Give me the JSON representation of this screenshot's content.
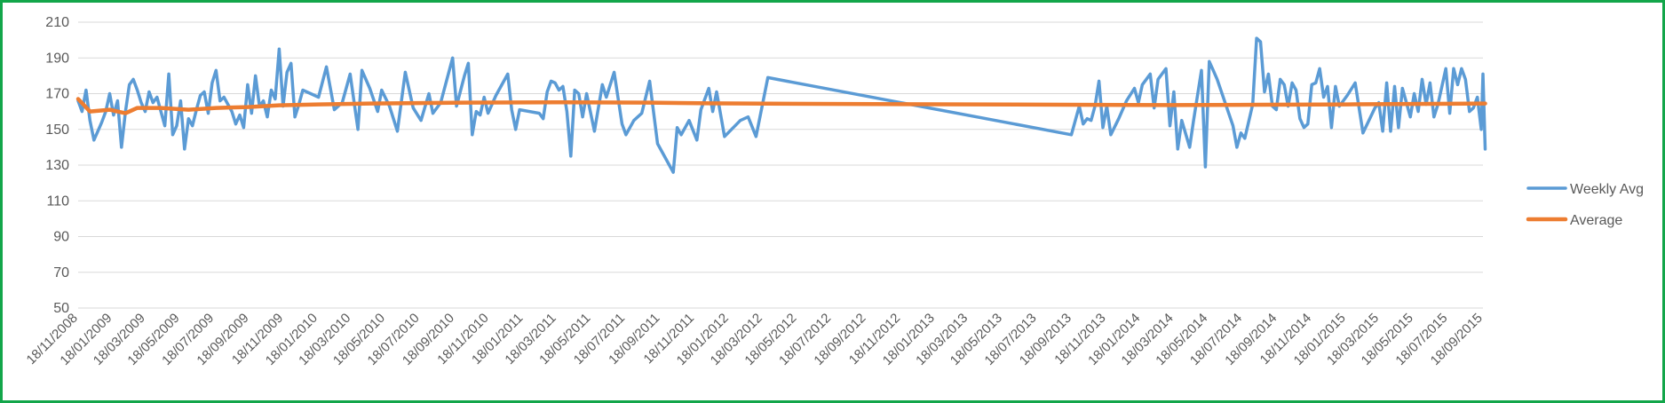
{
  "chart_data": {
    "type": "line",
    "title": "",
    "xlabel": "",
    "ylabel": "",
    "ylim": [
      50,
      210
    ],
    "y_ticks": [
      50,
      70,
      90,
      110,
      130,
      150,
      170,
      190,
      210
    ],
    "x_range": [
      "2008-11-18",
      "2015-09-18"
    ],
    "x_tick_labels": [
      "18/11/2008",
      "18/01/2009",
      "18/03/2009",
      "18/05/2009",
      "18/07/2009",
      "18/09/2009",
      "18/11/2009",
      "18/01/2010",
      "18/03/2010",
      "18/05/2010",
      "18/07/2010",
      "18/09/2010",
      "18/11/2010",
      "18/01/2011",
      "18/03/2011",
      "18/05/2011",
      "18/07/2011",
      "18/09/2011",
      "18/11/2011",
      "18/01/2012",
      "18/03/2012",
      "18/05/2012",
      "18/07/2012",
      "18/09/2012",
      "18/11/2012",
      "18/01/2013",
      "18/03/2013",
      "18/05/2013",
      "18/07/2013",
      "18/09/2013",
      "18/11/2013",
      "18/01/2014",
      "18/03/2014",
      "18/05/2014",
      "18/07/2014",
      "18/09/2014",
      "18/11/2014",
      "18/01/2015",
      "18/03/2015",
      "18/05/2015",
      "18/07/2015",
      "18/09/2015"
    ],
    "grid": true,
    "legend_position": "right",
    "colors": {
      "weekly": "#5b9bd5",
      "average": "#ed7d31",
      "grid": "#d9d9d9",
      "frame": "#12a64a"
    },
    "series": [
      {
        "name": "Weekly Avg",
        "points": [
          [
            "2008-11-18",
            166
          ],
          [
            "2008-11-25",
            160
          ],
          [
            "2008-12-02",
            172
          ],
          [
            "2008-12-09",
            155
          ],
          [
            "2008-12-16",
            144
          ],
          [
            "2008-12-23",
            149
          ],
          [
            "2008-12-30",
            154
          ],
          [
            "2009-01-06",
            160
          ],
          [
            "2009-01-13",
            170
          ],
          [
            "2009-01-20",
            158
          ],
          [
            "2009-01-27",
            166
          ],
          [
            "2009-02-03",
            140
          ],
          [
            "2009-02-10",
            160
          ],
          [
            "2009-02-17",
            175
          ],
          [
            "2009-02-24",
            178
          ],
          [
            "2009-03-03",
            172
          ],
          [
            "2009-03-10",
            165
          ],
          [
            "2009-03-17",
            160
          ],
          [
            "2009-03-24",
            171
          ],
          [
            "2009-03-31",
            165
          ],
          [
            "2009-04-07",
            168
          ],
          [
            "2009-04-14",
            160
          ],
          [
            "2009-04-21",
            152
          ],
          [
            "2009-04-28",
            181
          ],
          [
            "2009-05-05",
            147
          ],
          [
            "2009-05-12",
            152
          ],
          [
            "2009-05-19",
            166
          ],
          [
            "2009-05-26",
            139
          ],
          [
            "2009-06-02",
            156
          ],
          [
            "2009-06-09",
            152
          ],
          [
            "2009-06-16",
            161
          ],
          [
            "2009-06-23",
            169
          ],
          [
            "2009-06-30",
            171
          ],
          [
            "2009-07-07",
            159
          ],
          [
            "2009-07-14",
            176
          ],
          [
            "2009-07-21",
            183
          ],
          [
            "2009-07-28",
            166
          ],
          [
            "2009-08-04",
            168
          ],
          [
            "2009-08-11",
            164
          ],
          [
            "2009-08-18",
            160
          ],
          [
            "2009-08-25",
            153
          ],
          [
            "2009-09-01",
            158
          ],
          [
            "2009-09-08",
            151
          ],
          [
            "2009-09-15",
            175
          ],
          [
            "2009-09-22",
            159
          ],
          [
            "2009-09-29",
            180
          ],
          [
            "2009-10-06",
            163
          ],
          [
            "2009-10-13",
            166
          ],
          [
            "2009-10-20",
            157
          ],
          [
            "2009-10-27",
            172
          ],
          [
            "2009-11-03",
            167
          ],
          [
            "2009-11-10",
            195
          ],
          [
            "2009-11-17",
            163
          ],
          [
            "2009-11-24",
            182
          ],
          [
            "2009-12-01",
            187
          ],
          [
            "2009-12-08",
            157
          ],
          [
            "2009-12-15",
            164
          ],
          [
            "2009-12-22",
            172
          ],
          [
            "2010-01-05",
            170
          ],
          [
            "2010-01-19",
            168
          ],
          [
            "2010-02-02",
            185
          ],
          [
            "2010-02-16",
            161
          ],
          [
            "2010-03-02",
            165
          ],
          [
            "2010-03-16",
            181
          ],
          [
            "2010-03-30",
            150
          ],
          [
            "2010-04-06",
            183
          ],
          [
            "2010-04-20",
            173
          ],
          [
            "2010-05-04",
            160
          ],
          [
            "2010-05-11",
            172
          ],
          [
            "2010-05-25",
            163
          ],
          [
            "2010-06-08",
            149
          ],
          [
            "2010-06-22",
            182
          ],
          [
            "2010-07-06",
            162
          ],
          [
            "2010-07-20",
            155
          ],
          [
            "2010-08-03",
            170
          ],
          [
            "2010-08-10",
            159
          ],
          [
            "2010-08-24",
            165
          ],
          [
            "2010-09-14",
            190
          ],
          [
            "2010-09-21",
            163
          ],
          [
            "2010-10-05",
            180
          ],
          [
            "2010-10-12",
            187
          ],
          [
            "2010-10-19",
            147
          ],
          [
            "2010-10-26",
            160
          ],
          [
            "2010-11-02",
            158
          ],
          [
            "2010-11-09",
            168
          ],
          [
            "2010-11-16",
            159
          ],
          [
            "2010-11-30",
            169
          ],
          [
            "2010-12-21",
            181
          ],
          [
            "2010-12-28",
            161
          ],
          [
            "2011-01-04",
            150
          ],
          [
            "2011-01-11",
            161
          ],
          [
            "2011-02-15",
            159
          ],
          [
            "2011-02-22",
            156
          ],
          [
            "2011-03-01",
            171
          ],
          [
            "2011-03-08",
            177
          ],
          [
            "2011-03-15",
            176
          ],
          [
            "2011-03-22",
            172
          ],
          [
            "2011-03-29",
            174
          ],
          [
            "2011-04-05",
            160
          ],
          [
            "2011-04-12",
            135
          ],
          [
            "2011-04-19",
            172
          ],
          [
            "2011-04-26",
            170
          ],
          [
            "2011-05-03",
            157
          ],
          [
            "2011-05-10",
            170
          ],
          [
            "2011-05-24",
            149
          ],
          [
            "2011-06-07",
            175
          ],
          [
            "2011-06-14",
            168
          ],
          [
            "2011-06-28",
            182
          ],
          [
            "2011-07-12",
            153
          ],
          [
            "2011-07-19",
            147
          ],
          [
            "2011-08-02",
            155
          ],
          [
            "2011-08-16",
            159
          ],
          [
            "2011-08-30",
            177
          ],
          [
            "2011-09-13",
            142
          ],
          [
            "2011-10-11",
            126
          ],
          [
            "2011-10-18",
            151
          ],
          [
            "2011-10-25",
            147
          ],
          [
            "2011-11-08",
            155
          ],
          [
            "2011-11-22",
            144
          ],
          [
            "2011-11-29",
            161
          ],
          [
            "2011-12-13",
            173
          ],
          [
            "2011-12-20",
            160
          ],
          [
            "2011-12-27",
            171
          ],
          [
            "2012-01-10",
            146
          ],
          [
            "2012-02-07",
            155
          ],
          [
            "2012-02-21",
            157
          ],
          [
            "2012-03-06",
            146
          ],
          [
            "2012-03-27",
            179
          ],
          [
            "2013-09-17",
            147
          ],
          [
            "2013-10-01",
            163
          ],
          [
            "2013-10-08",
            153
          ],
          [
            "2013-10-15",
            156
          ],
          [
            "2013-10-22",
            155
          ],
          [
            "2013-10-29",
            163
          ],
          [
            "2013-11-05",
            177
          ],
          [
            "2013-11-12",
            151
          ],
          [
            "2013-11-19",
            163
          ],
          [
            "2013-11-26",
            147
          ],
          [
            "2013-12-10",
            156
          ],
          [
            "2013-12-24",
            166
          ],
          [
            "2014-01-07",
            173
          ],
          [
            "2014-01-14",
            165
          ],
          [
            "2014-01-21",
            175
          ],
          [
            "2014-02-04",
            181
          ],
          [
            "2014-02-11",
            162
          ],
          [
            "2014-02-18",
            178
          ],
          [
            "2014-03-04",
            184
          ],
          [
            "2014-03-11",
            152
          ],
          [
            "2014-03-18",
            171
          ],
          [
            "2014-03-25",
            139
          ],
          [
            "2014-04-01",
            155
          ],
          [
            "2014-04-15",
            140
          ],
          [
            "2014-04-22",
            155
          ],
          [
            "2014-05-06",
            183
          ],
          [
            "2014-05-13",
            129
          ],
          [
            "2014-05-20",
            188
          ],
          [
            "2014-05-27",
            183
          ],
          [
            "2014-06-03",
            178
          ],
          [
            "2014-06-17",
            165
          ],
          [
            "2014-07-01",
            152
          ],
          [
            "2014-07-08",
            140
          ],
          [
            "2014-07-15",
            148
          ],
          [
            "2014-07-22",
            145
          ],
          [
            "2014-08-05",
            164
          ],
          [
            "2014-08-12",
            201
          ],
          [
            "2014-08-19",
            199
          ],
          [
            "2014-08-26",
            171
          ],
          [
            "2014-09-02",
            181
          ],
          [
            "2014-09-09",
            163
          ],
          [
            "2014-09-16",
            161
          ],
          [
            "2014-09-23",
            178
          ],
          [
            "2014-09-30",
            175
          ],
          [
            "2014-10-07",
            163
          ],
          [
            "2014-10-14",
            176
          ],
          [
            "2014-10-21",
            172
          ],
          [
            "2014-10-28",
            156
          ],
          [
            "2014-11-04",
            151
          ],
          [
            "2014-11-11",
            153
          ],
          [
            "2014-11-18",
            175
          ],
          [
            "2014-11-25",
            176
          ],
          [
            "2014-12-02",
            184
          ],
          [
            "2014-12-09",
            168
          ],
          [
            "2014-12-16",
            174
          ],
          [
            "2014-12-23",
            151
          ],
          [
            "2014-12-30",
            174
          ],
          [
            "2015-01-06",
            163
          ],
          [
            "2015-01-20",
            169
          ],
          [
            "2015-02-03",
            176
          ],
          [
            "2015-02-17",
            148
          ],
          [
            "2015-03-10",
            162
          ],
          [
            "2015-03-17",
            165
          ],
          [
            "2015-03-24",
            149
          ],
          [
            "2015-03-31",
            176
          ],
          [
            "2015-04-07",
            149
          ],
          [
            "2015-04-14",
            174
          ],
          [
            "2015-04-21",
            151
          ],
          [
            "2015-04-28",
            173
          ],
          [
            "2015-05-05",
            165
          ],
          [
            "2015-05-12",
            157
          ],
          [
            "2015-05-19",
            170
          ],
          [
            "2015-05-26",
            160
          ],
          [
            "2015-06-02",
            178
          ],
          [
            "2015-06-09",
            164
          ],
          [
            "2015-06-16",
            176
          ],
          [
            "2015-06-23",
            157
          ],
          [
            "2015-06-30",
            164
          ],
          [
            "2015-07-14",
            184
          ],
          [
            "2015-07-21",
            159
          ],
          [
            "2015-07-28",
            184
          ],
          [
            "2015-08-04",
            175
          ],
          [
            "2015-08-11",
            184
          ],
          [
            "2015-08-18",
            178
          ],
          [
            "2015-08-25",
            160
          ],
          [
            "2015-09-01",
            162
          ],
          [
            "2015-09-08",
            168
          ],
          [
            "2015-09-15",
            150
          ],
          [
            "2015-09-18",
            181
          ],
          [
            "2015-09-22",
            139
          ]
        ]
      },
      {
        "name": "Average",
        "points": [
          [
            "2008-11-18",
            167
          ],
          [
            "2008-12-09",
            160
          ],
          [
            "2009-01-13",
            161
          ],
          [
            "2009-02-10",
            159
          ],
          [
            "2009-03-03",
            162
          ],
          [
            "2009-04-14",
            162
          ],
          [
            "2009-06-02",
            161
          ],
          [
            "2009-07-21",
            162
          ],
          [
            "2009-09-15",
            162.5
          ],
          [
            "2009-11-10",
            163.5
          ],
          [
            "2010-01-19",
            164
          ],
          [
            "2010-04-20",
            164.5
          ],
          [
            "2010-10-05",
            165
          ],
          [
            "2011-03-15",
            165.2
          ],
          [
            "2011-08-30",
            165
          ],
          [
            "2011-12-13",
            164.6
          ],
          [
            "2012-03-27",
            164.4
          ],
          [
            "2013-09-17",
            163.8
          ],
          [
            "2014-03-11",
            163.6
          ],
          [
            "2014-08-12",
            163.8
          ],
          [
            "2015-01-20",
            164
          ],
          [
            "2015-09-22",
            164.5
          ]
        ]
      }
    ]
  }
}
